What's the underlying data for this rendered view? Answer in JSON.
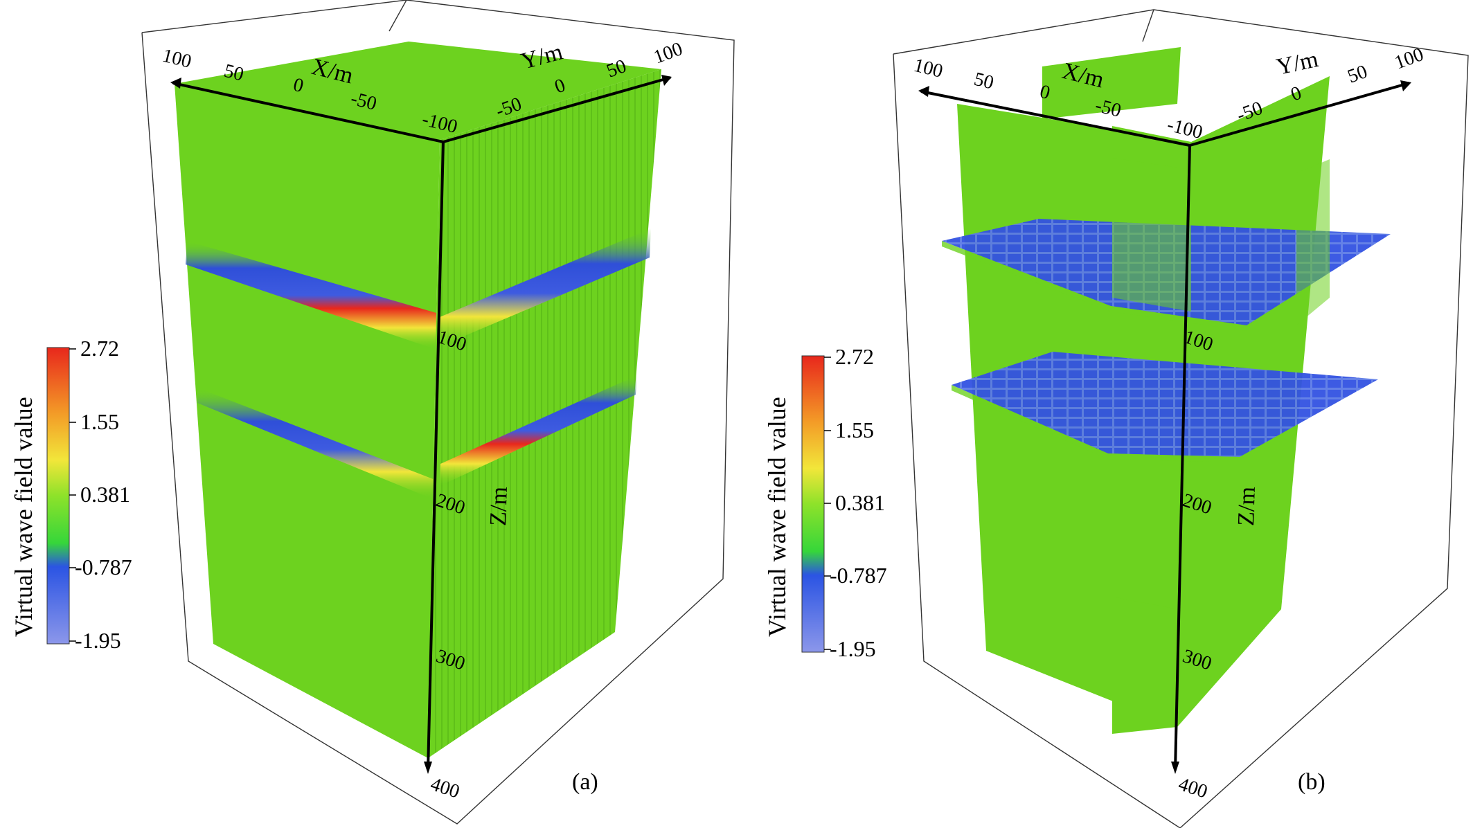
{
  "figure": {
    "colorbar": {
      "title": "Virtual wave field value",
      "ticks": [
        "2.72",
        "1.55",
        "0.381",
        "-0.787",
        "-1.95"
      ],
      "colors": {
        "top": "#e8271c",
        "orange": "#f39a27",
        "yellow": "#f2e63a",
        "green": "#66dd1d",
        "blue": "#2b54e3",
        "bottom": "#8c97ea"
      }
    },
    "field_colors": {
      "background": "#6dd21f",
      "positive": "#e8271c",
      "negative": "#2f4fd8"
    },
    "panels": [
      {
        "label": "(a)",
        "axes": {
          "x_title": "X/m",
          "y_title": "Y/m",
          "z_title": "Z/m",
          "x_ticks": [
            "100",
            "50",
            "0",
            "-50",
            "-100"
          ],
          "y_ticks": [
            "-50",
            "0",
            "50",
            "100"
          ],
          "z_ticks": [
            "100",
            "200",
            "300",
            "400"
          ]
        }
      },
      {
        "label": "(b)",
        "axes": {
          "x_title": "X/m",
          "y_title": "Y/m",
          "z_title": "Z/m",
          "x_ticks": [
            "100",
            "50",
            "0",
            "-50",
            "-100"
          ],
          "y_ticks": [
            "-50",
            "0",
            "50",
            "100"
          ],
          "z_ticks": [
            "100",
            "200",
            "300",
            "400"
          ]
        }
      }
    ]
  }
}
